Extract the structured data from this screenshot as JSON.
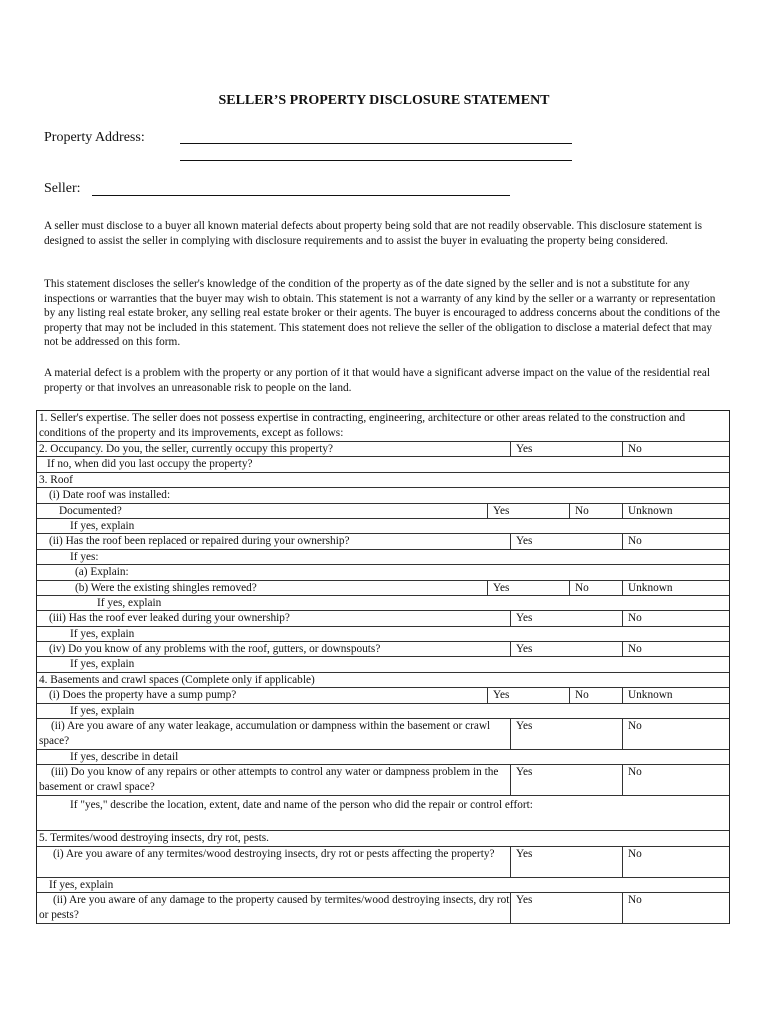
{
  "title": "SELLER’S PROPERTY DISCLOSURE STATEMENT",
  "property_address_label": "Property Address:",
  "seller_label": "Seller:",
  "paragraphs": [
    "A seller must disclose to a buyer all known material defects about property being sold that are not readily observable. This disclosure statement is designed to assist the seller in complying with disclosure requirements and to assist the buyer in evaluating the property being considered.",
    "This statement discloses the seller's knowledge of the condition of the property as of the date signed by the seller and is not a substitute for any inspections or warranties that the buyer may wish to obtain. This statement is not a warranty of any kind by the seller or a warranty or representation by any listing real estate broker, any selling real estate broker or their agents. The buyer is encouraged to address concerns about the conditions of the property that may not be included in this statement. This statement does not relieve the seller of the obligation to disclose a material defect that may not be addressed on this form.",
    "A material defect is a problem with the property or any portion of it that would have a significant adverse impact on the value of the residential real property or that involves an unreasonable risk to people on the land."
  ],
  "options": {
    "yes": "Yes",
    "no": "No",
    "unknown": "Unknown"
  },
  "rows": [
    "1. Seller's expertise. The seller does not possess expertise in contracting, engineering, architecture or other areas related to the construction and conditions of the property and its improvements, except as follows:",
    "2. Occupancy. Do you, the seller, currently occupy this property?",
    "If no, when did you last occupy the property?",
    "3. Roof",
    "(i) Date roof was installed:",
    "Documented?",
    "If yes, explain",
    "(ii) Has the roof been replaced or repaired during your ownership?",
    "If yes:",
    "(a) Explain:",
    "(b) Were the existing shingles removed?",
    "If yes, explain",
    "(iii) Has the roof ever leaked during your ownership?",
    "If yes, explain",
    "(iv) Do you know of any problems with the roof, gutters, or downspouts?",
    "If yes, explain",
    "4. Basements and crawl spaces (Complete only if applicable)",
    "(i) Does the property have a sump pump?",
    "If yes, explain",
    "(ii) Are you aware of any water leakage, accumulation or dampness within the basement or crawl space?",
    "If yes, describe in detail",
    "(iii) Do you know of any repairs or other attempts to control any water or dampness problem in the basement or crawl space?",
    "If \"yes,\" describe the location, extent, date and name of the person who did the repair or control effort:",
    "5. Termites/wood destroying insects, dry rot, pests.",
    "(i) Are you aware of any termites/wood destroying insects, dry rot or pests affecting the property?",
    "If yes, explain",
    "(ii) Are you aware of any damage to the property caused by termites/wood destroying insects, dry rot or pests?"
  ]
}
